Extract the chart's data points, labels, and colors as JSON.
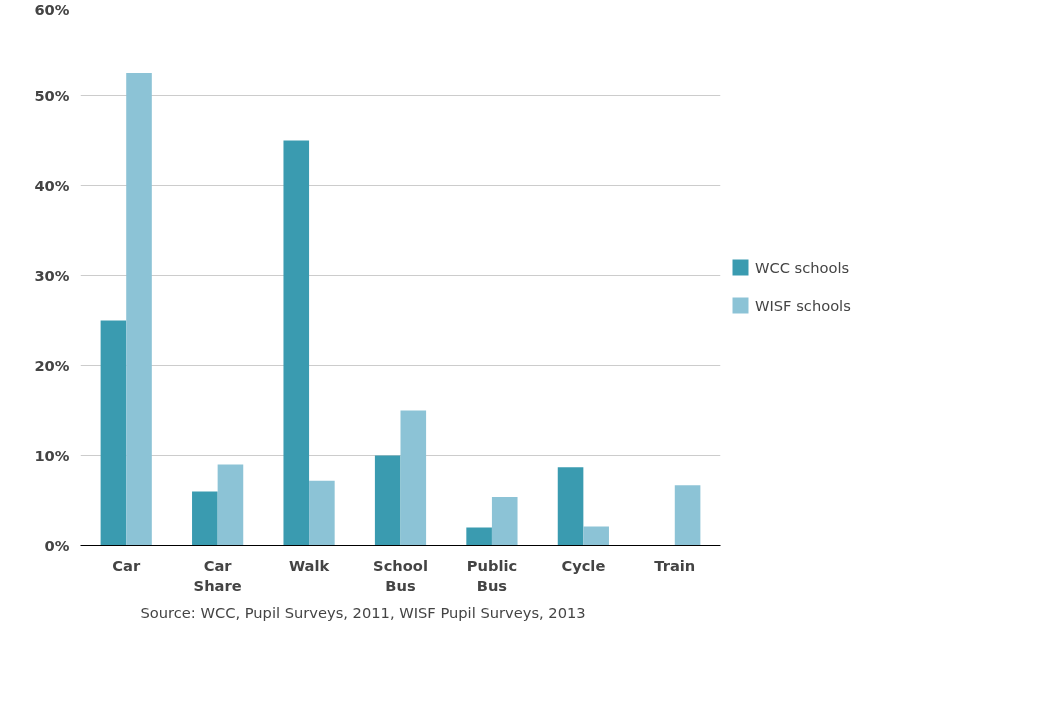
{
  "chart_data": {
    "type": "bar",
    "categories": [
      "Car",
      "Car Share",
      "Walk",
      "School Bus",
      "Public Bus",
      "Cycle",
      "Train"
    ],
    "series": [
      {
        "name": "WCC schools",
        "color": "#3a9bb0",
        "values": [
          25,
          6,
          45,
          10,
          2,
          8.7,
          null
        ]
      },
      {
        "name": "WISF schools",
        "color": "#8cc3d6",
        "values": [
          52.5,
          9,
          7.2,
          15,
          5.4,
          2.1,
          6.7
        ]
      }
    ],
    "ylim": [
      0,
      60
    ],
    "yticks": [
      {
        "value": 0,
        "label": "0%"
      },
      {
        "value": 10,
        "label": "10%"
      },
      {
        "value": 20,
        "label": "20%"
      },
      {
        "value": 30,
        "label": "30%"
      },
      {
        "value": 40,
        "label": "40%"
      },
      {
        "value": 50,
        "label": "50%"
      },
      {
        "value": 60,
        "label": "60%"
      }
    ],
    "grid": "y",
    "legend": "right",
    "annotations": [
      "Source: WCC, Pupil Surveys, 2011, WISF Pupil Surveys, 2013"
    ]
  }
}
